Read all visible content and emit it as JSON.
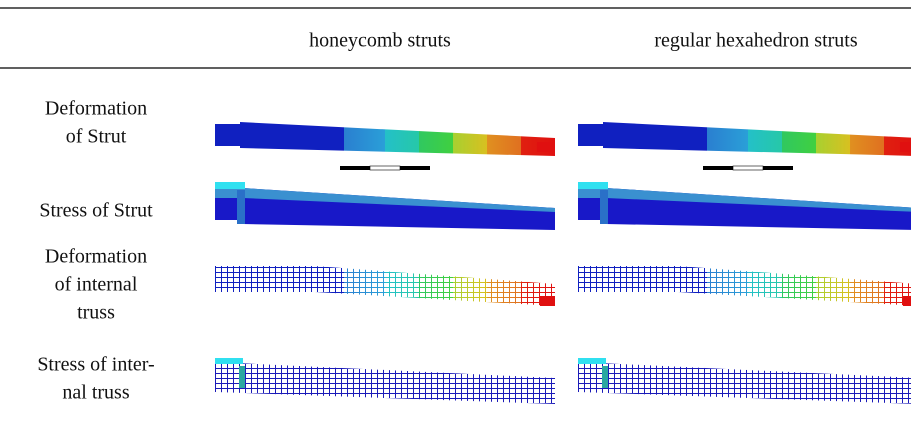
{
  "table": {
    "header": {
      "columns": [
        "honeycomb struts",
        "regular hexahedron struts"
      ]
    },
    "rows": [
      {
        "label": [
          "Deformation",
          "of Strut"
        ]
      },
      {
        "label": [
          "Stress of Strut"
        ]
      },
      {
        "label": [
          "Deformation",
          "of internal",
          "truss"
        ]
      },
      {
        "label": [
          "Stress of inter-",
          "nal truss"
        ]
      }
    ]
  }
}
